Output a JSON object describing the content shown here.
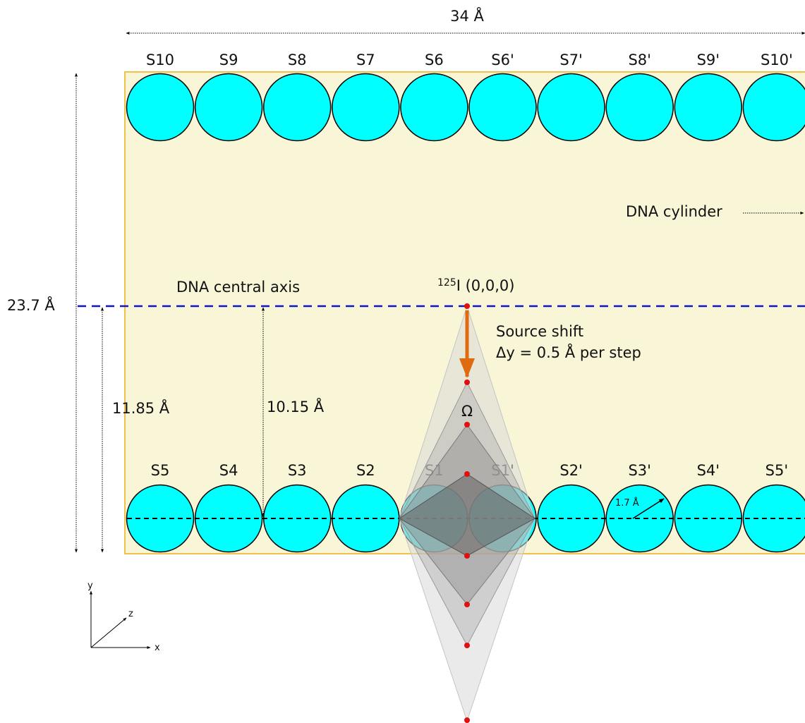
{
  "width_label": "34 Å",
  "height_label": "23.7 Å",
  "half_height_label": "11.85 Å",
  "axis_distance_label": "10.15 Å",
  "central_axis_label": "DNA central axis",
  "cylinder_label": "DNA cylinder",
  "source_label_sup": "125",
  "source_label_main": "I (0,0,0)",
  "shift_line1": "Source shift",
  "shift_line2": "Δy = 0.5 Å per step",
  "omega_label": "Ω",
  "radius_label": "1.7 Å",
  "top_spheres": [
    "S10",
    "S9",
    "S8",
    "S7",
    "S6",
    "S6'",
    "S7'",
    "S8'",
    "S9'",
    "S10'"
  ],
  "bottom_spheres": [
    "S5",
    "S4",
    "S3",
    "S2",
    "S1",
    "S1'",
    "S2'",
    "S3'",
    "S4'",
    "S5'"
  ],
  "axes": {
    "x": "x",
    "y": "y",
    "z": "z"
  },
  "colors": {
    "cylinder_fill": "#f8f6d6",
    "cylinder_border": "#f0c24a",
    "sphere_fill": "#00ffff",
    "axis_line": "#1414c8",
    "arrow": "#e06a10",
    "source_point": "#e01010"
  }
}
